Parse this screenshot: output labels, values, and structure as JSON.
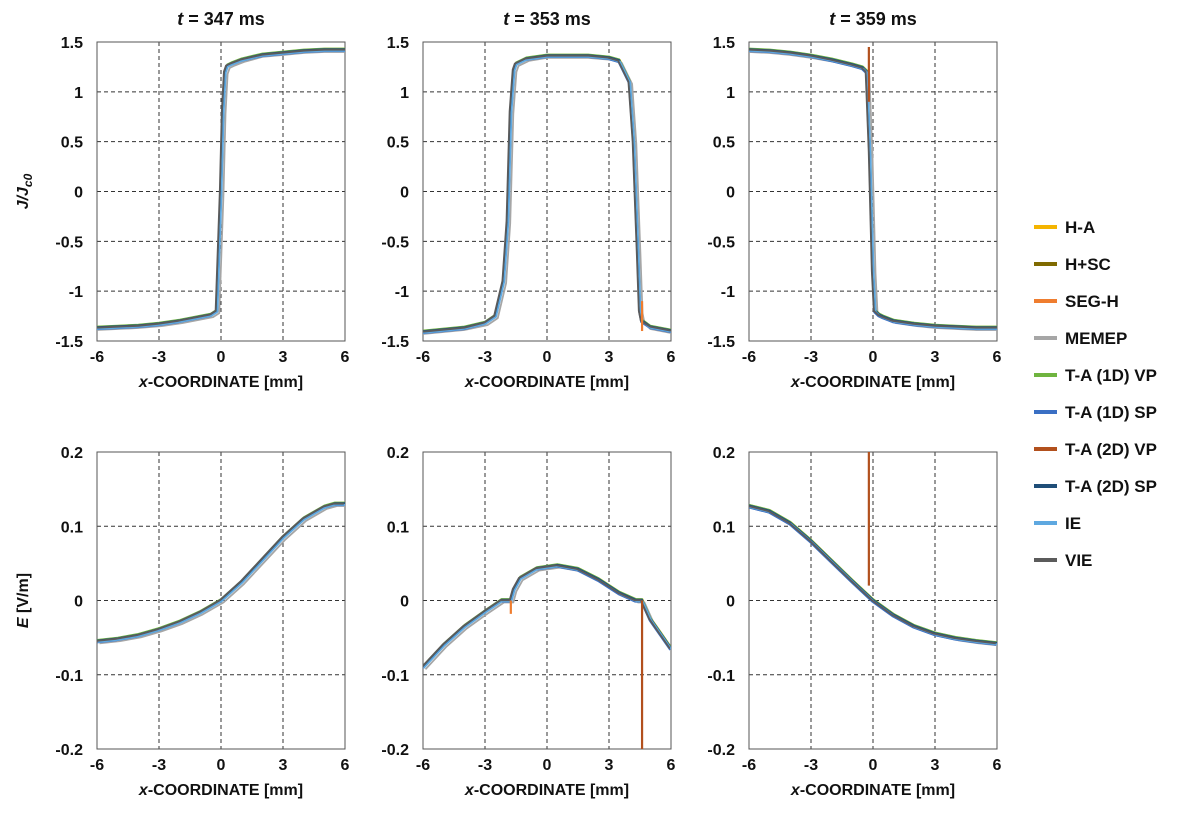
{
  "colors": {
    "H-A": "#f4b400",
    "H+SC": "#7f6a00",
    "SEG-H": "#ef7d2f",
    "MEMEP": "#a6a6a6",
    "T-A (1D) VP": "#6fb43f",
    "T-A (1D) SP": "#3a6fc4",
    "T-A (2D) VP": "#b2501d",
    "T-A (2D) SP": "#1f4e78",
    "IE": "#5ea8e0",
    "VIE": "#5b5b5b"
  },
  "legend": {
    "entries": [
      "H-A",
      "H+SC",
      "SEG-H",
      "MEMEP",
      "T-A (1D) VP",
      "T-A (1D) SP",
      "T-A (2D) VP",
      "T-A (2D) SP",
      "IE",
      "VIE"
    ],
    "placement": "right"
  },
  "column_titles": [
    {
      "var": "t",
      "rest": " = 347 ms"
    },
    {
      "var": "t",
      "rest": " = 353 ms"
    },
    {
      "var": "t",
      "rest": " = 359 ms"
    }
  ],
  "ylabels": {
    "top": {
      "main": "J/J",
      "sub": "c0"
    },
    "bottom": {
      "main": "E",
      "rest": " [V/m]"
    }
  },
  "xlabel": {
    "var": "x",
    "rest": "-COORDINATE [mm]"
  },
  "chart_data": [
    {
      "type": "line",
      "row": 0,
      "col": 0,
      "xlim": [
        -6,
        6
      ],
      "ylim": [
        -1.5,
        1.5
      ],
      "xticks": [
        "-6",
        "-3",
        "0",
        "3",
        "6"
      ],
      "yticks": [
        "1.5",
        "1",
        "0.5",
        "0",
        "-0.5",
        "-1",
        "-1.5"
      ],
      "grid": true,
      "x": [
        -6,
        -5,
        -4,
        -3,
        -2,
        -1,
        -0.5,
        -0.2,
        0,
        0.1,
        0.2,
        0.3,
        0.5,
        1,
        2,
        3,
        4,
        5,
        6
      ],
      "y": [
        -1.37,
        -1.36,
        -1.35,
        -1.33,
        -1.3,
        -1.26,
        -1.24,
        -1.2,
        0.0,
        0.8,
        1.2,
        1.26,
        1.28,
        1.32,
        1.37,
        1.39,
        1.41,
        1.42,
        1.42
      ],
      "spikes": []
    },
    {
      "type": "line",
      "row": 0,
      "col": 1,
      "xlim": [
        -6,
        6
      ],
      "ylim": [
        -1.5,
        1.5
      ],
      "xticks": [
        "-6",
        "-3",
        "0",
        "3",
        "6"
      ],
      "yticks": [
        "1.5",
        "1",
        "0.5",
        "0",
        "-0.5",
        "-1",
        "-1.5"
      ],
      "grid": true,
      "x": [
        -6,
        -5,
        -4,
        -3,
        -2.5,
        -2.1,
        -1.9,
        -1.75,
        -1.6,
        -1.5,
        -1,
        0,
        1,
        2,
        3,
        3.5,
        4.0,
        4.2,
        4.4,
        4.5,
        4.6,
        5,
        6
      ],
      "y": [
        -1.41,
        -1.39,
        -1.37,
        -1.32,
        -1.25,
        -0.9,
        -0.3,
        0.8,
        1.22,
        1.28,
        1.33,
        1.36,
        1.36,
        1.36,
        1.34,
        1.31,
        1.1,
        0.5,
        -0.6,
        -1.2,
        -1.3,
        -1.36,
        -1.4
      ],
      "spikes": [
        {
          "series": "SEG-H",
          "x": 4.6,
          "y": [
            -1.1,
            -1.4
          ]
        }
      ]
    },
    {
      "type": "line",
      "row": 0,
      "col": 2,
      "xlim": [
        -6,
        6
      ],
      "ylim": [
        -1.5,
        1.5
      ],
      "xticks": [
        "-6",
        "-3",
        "0",
        "3",
        "6"
      ],
      "yticks": [
        "1.5",
        "1",
        "0.5",
        "0",
        "-0.5",
        "-1",
        "-1.5"
      ],
      "grid": true,
      "x": [
        -6,
        -5,
        -4,
        -3,
        -2,
        -1,
        -0.5,
        -0.3,
        -0.15,
        0,
        0.1,
        0.3,
        0.5,
        1,
        2,
        3,
        4,
        5,
        6
      ],
      "y": [
        1.42,
        1.41,
        1.39,
        1.36,
        1.32,
        1.27,
        1.24,
        1.2,
        0.4,
        -0.8,
        -1.2,
        -1.24,
        -1.26,
        -1.3,
        -1.33,
        -1.35,
        -1.36,
        -1.37,
        -1.37
      ],
      "spikes": [
        {
          "series": "T-A (2D) VP",
          "x": -0.2,
          "y": [
            1.45,
            0.9
          ]
        }
      ]
    },
    {
      "type": "line",
      "row": 1,
      "col": 0,
      "xlim": [
        -6,
        6
      ],
      "ylim": [
        -0.2,
        0.2
      ],
      "xticks": [
        "-6",
        "-3",
        "0",
        "3",
        "6"
      ],
      "yticks": [
        "0.2",
        "0.1",
        "0",
        "-0.1",
        "-0.2"
      ],
      "grid": true,
      "x": [
        -6,
        -5,
        -4,
        -3,
        -2,
        -1,
        0,
        1,
        2,
        3,
        4,
        5,
        5.5,
        6
      ],
      "y": [
        -0.055,
        -0.052,
        -0.047,
        -0.039,
        -0.029,
        -0.016,
        0.0,
        0.025,
        0.055,
        0.085,
        0.11,
        0.126,
        0.13,
        0.13
      ],
      "spikes": []
    },
    {
      "type": "line",
      "row": 1,
      "col": 1,
      "xlim": [
        -6,
        6
      ],
      "ylim": [
        -0.2,
        0.2
      ],
      "xticks": [
        "-6",
        "-3",
        "0",
        "3",
        "6"
      ],
      "yticks": [
        "0.2",
        "0.1",
        "0",
        "-0.1",
        "-0.2"
      ],
      "grid": true,
      "x": [
        -6,
        -5,
        -4,
        -3,
        -2.2,
        -1.75,
        -1.6,
        -1.3,
        -0.5,
        0.5,
        1.5,
        2.5,
        3.5,
        4.3,
        4.6,
        5,
        5.5,
        6
      ],
      "y": [
        -0.09,
        -0.06,
        -0.035,
        -0.015,
        0.0,
        0.0,
        0.015,
        0.03,
        0.043,
        0.047,
        0.042,
        0.028,
        0.01,
        0.0,
        0.0,
        -0.025,
        -0.045,
        -0.065
      ],
      "spikes": [
        {
          "series": "T-A (2D) VP",
          "x": 4.6,
          "y": [
            0.0,
            -0.2
          ]
        },
        {
          "series": "SEG-H",
          "x": -1.75,
          "y": [
            0.0,
            -0.018
          ]
        }
      ]
    },
    {
      "type": "line",
      "row": 1,
      "col": 2,
      "xlim": [
        -6,
        6
      ],
      "ylim": [
        -0.2,
        0.2
      ],
      "xticks": [
        "-6",
        "-3",
        "0",
        "3",
        "6"
      ],
      "yticks": [
        "0.2",
        "0.1",
        "0",
        "-0.1",
        "-0.2"
      ],
      "grid": true,
      "x": [
        -6,
        -5,
        -4,
        -3,
        -2,
        -1,
        0,
        1,
        2,
        3,
        4,
        5,
        6
      ],
      "y": [
        0.127,
        0.12,
        0.104,
        0.08,
        0.053,
        0.026,
        0.0,
        -0.02,
        -0.035,
        -0.045,
        -0.051,
        -0.055,
        -0.058
      ],
      "spikes": [
        {
          "series": "T-A (2D) VP",
          "x": -0.2,
          "y": [
            0.2,
            0.02
          ]
        }
      ]
    }
  ]
}
